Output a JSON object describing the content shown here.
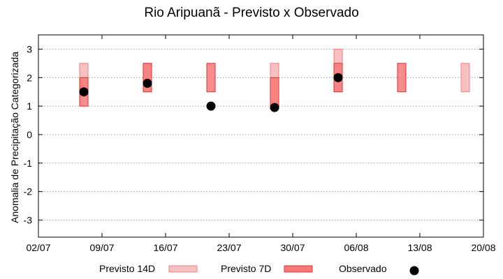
{
  "chart_data": {
    "type": "bar",
    "title": "Rio Aripuanã - Previsto x Observado",
    "xlabel": "",
    "ylabel": "Anomalia de Precipitação Categorizada",
    "x_ticks": [
      "02/07",
      "09/07",
      "16/07",
      "23/07",
      "30/07",
      "06/08",
      "13/08",
      "20/08"
    ],
    "y_ticks": [
      "-3",
      "-2",
      "-1",
      "0",
      "1",
      "2",
      "3"
    ],
    "xlim": [
      "2024-07-02",
      "2024-08-20"
    ],
    "ylim": [
      -3.6,
      3.5
    ],
    "grid": "horizontal dotted",
    "legend_position": "bottom",
    "series": [
      {
        "name": "Previsto 14D",
        "kind": "range",
        "color": "#f7c0c0",
        "edge": "#f08080",
        "points": [
          {
            "x": "2024-07-07",
            "low": 1.5,
            "high": 2.5
          },
          {
            "x": "2024-07-14",
            "low": 1.5,
            "high": 2.5
          },
          {
            "x": "2024-07-28",
            "low": 1.0,
            "high": 2.5
          },
          {
            "x": "2024-08-04",
            "low": 1.5,
            "high": 3.0
          },
          {
            "x": "2024-08-18",
            "low": 1.5,
            "high": 2.5
          }
        ]
      },
      {
        "name": "Previsto 7D",
        "kind": "range",
        "color": "#f87878",
        "edge": "#e03030",
        "points": [
          {
            "x": "2024-07-07",
            "low": 1.0,
            "high": 2.0
          },
          {
            "x": "2024-07-14",
            "low": 1.5,
            "high": 2.5
          },
          {
            "x": "2024-07-21",
            "low": 1.5,
            "high": 2.5
          },
          {
            "x": "2024-07-28",
            "low": 0.9,
            "high": 2.0
          },
          {
            "x": "2024-08-04",
            "low": 1.5,
            "high": 2.5
          },
          {
            "x": "2024-08-11",
            "low": 1.5,
            "high": 2.5
          }
        ]
      },
      {
        "name": "Observado",
        "kind": "scatter",
        "color": "#000000",
        "points": [
          {
            "x": "2024-07-07",
            "y": 1.5
          },
          {
            "x": "2024-07-14",
            "y": 1.8
          },
          {
            "x": "2024-07-21",
            "y": 1.0
          },
          {
            "x": "2024-07-28",
            "y": 0.95
          },
          {
            "x": "2024-08-04",
            "y": 2.0
          }
        ]
      }
    ]
  }
}
